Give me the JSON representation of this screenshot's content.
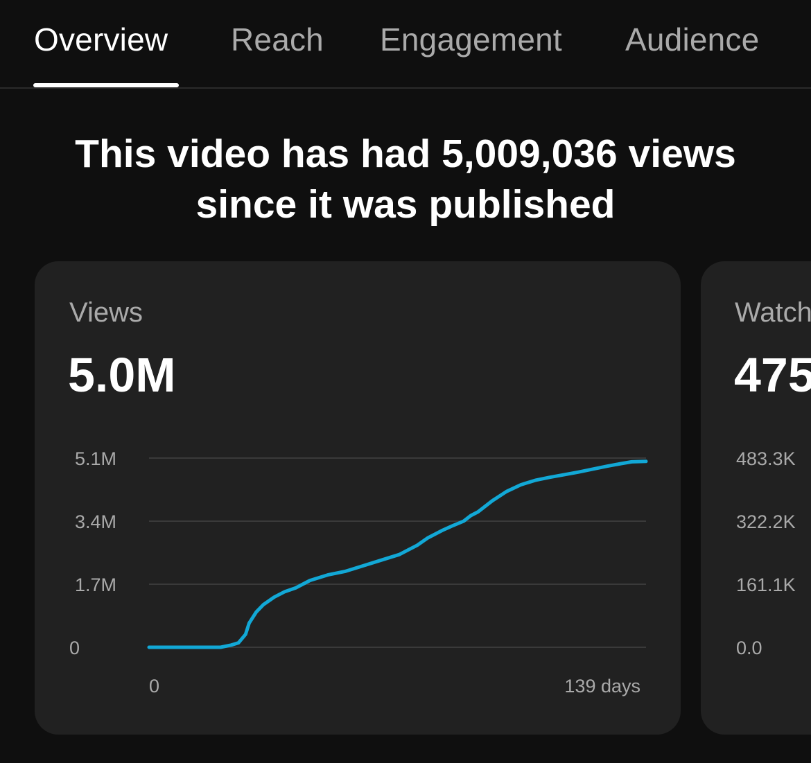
{
  "tabs": [
    {
      "label": "Overview",
      "active": true
    },
    {
      "label": "Reach",
      "active": false
    },
    {
      "label": "Engagement",
      "active": false
    },
    {
      "label": "Audience",
      "active": false
    }
  ],
  "headline": {
    "line1": "This video has had 5,009,036 views",
    "line2": "since it was published"
  },
  "colors": {
    "accent_line": "#12a8d6",
    "background": "#0f0f0f",
    "card": "#212121"
  },
  "views_card": {
    "label": "Views",
    "value": "5.0M",
    "chart_data": {
      "type": "line",
      "x_tick_labels": [
        "0",
        "139 days"
      ],
      "y_tick_labels": [
        "0",
        "1.7M",
        "3.4M",
        "5.1M"
      ],
      "xlim": [
        0,
        139
      ],
      "ylim": [
        0,
        5100000
      ],
      "grid": true,
      "series": [
        {
          "x": [
            0,
            20,
            23,
            25,
            27,
            28,
            30,
            32,
            35,
            38,
            41,
            45,
            50,
            55,
            60,
            65,
            70,
            72,
            75,
            78,
            82,
            85,
            88,
            90,
            92,
            96,
            100,
            104,
            108,
            112,
            116,
            120,
            124,
            128,
            132,
            135,
            139
          ],
          "y": [
            0,
            0,
            60000,
            120000,
            350000,
            650000,
            950000,
            1150000,
            1350000,
            1500000,
            1600000,
            1800000,
            1950000,
            2050000,
            2200000,
            2350000,
            2500000,
            2600000,
            2750000,
            2950000,
            3150000,
            3280000,
            3400000,
            3550000,
            3650000,
            3950000,
            4200000,
            4380000,
            4500000,
            4580000,
            4650000,
            4720000,
            4800000,
            4880000,
            4950000,
            5000000,
            5010000
          ]
        }
      ]
    }
  },
  "watch_card": {
    "label": "Watch",
    "value": "475",
    "y_tick_labels": [
      "0.0",
      "161.1K",
      "322.2K",
      "483.3K"
    ]
  }
}
